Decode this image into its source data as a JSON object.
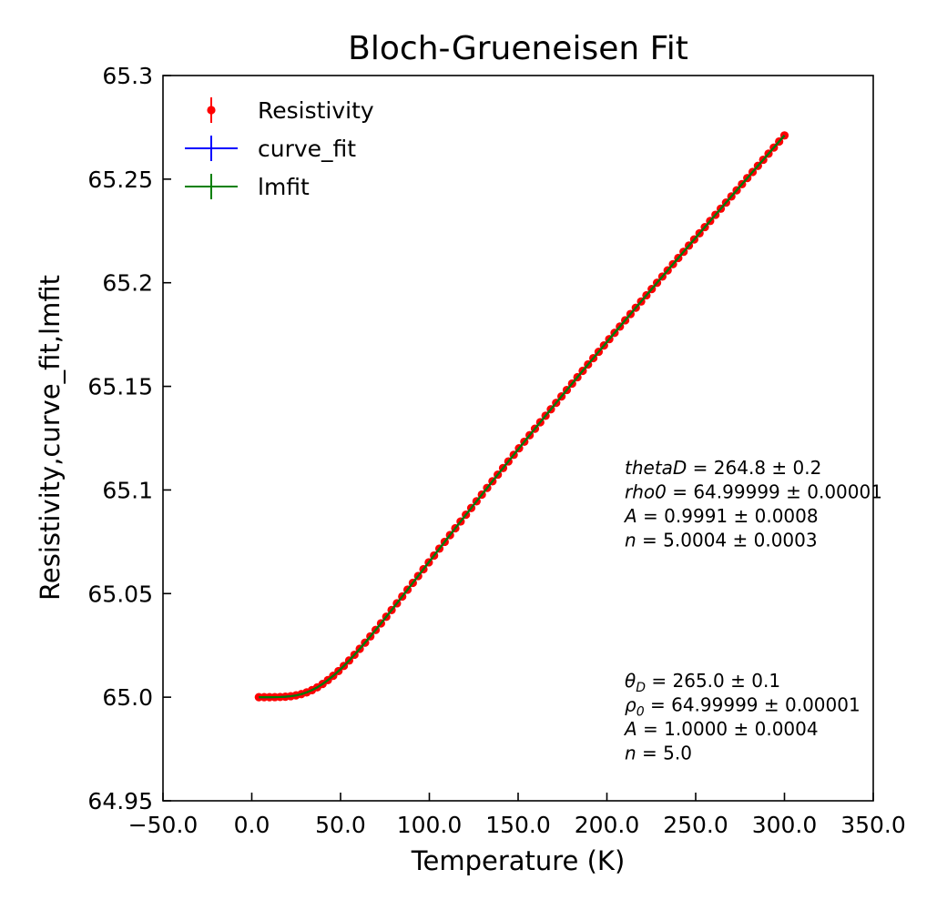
{
  "chart_data": {
    "type": "scatter",
    "title": "Bloch-Grueneisen Fit",
    "xlabel": "Temperature (K)",
    "ylabel": "Resistivity,curve_fit,lmfit",
    "xlim": [
      -50,
      350
    ],
    "ylim": [
      64.95,
      65.3
    ],
    "x_ticks": [
      -50,
      0,
      50,
      100,
      150,
      200,
      250,
      300,
      350
    ],
    "x_tick_labels": [
      "−50.0",
      "0.0",
      "50.0",
      "100.0",
      "150.0",
      "200.0",
      "250.0",
      "300.0",
      "350.0"
    ],
    "y_ticks": [
      64.95,
      65.0,
      65.05,
      65.1,
      65.15,
      65.2,
      65.25,
      65.3
    ],
    "y_tick_labels": [
      "64.95",
      "65.0",
      "65.05",
      "65.1",
      "65.15",
      "65.2",
      "65.25",
      "65.3"
    ],
    "grid": false,
    "legend_position": "top-left",
    "legend": [
      {
        "label": "Resistivity",
        "color": "#ff0000",
        "marker": "errorbar-point"
      },
      {
        "label": "curve_fit",
        "color": "#0000ff",
        "marker": "errorbar-line"
      },
      {
        "label": "lmfit",
        "color": "#008000",
        "marker": "errorbar-line"
      }
    ],
    "model": {
      "thetaD": 265.0,
      "rho0": 65.0,
      "A": 1.0,
      "n": 5
    },
    "x_range": [
      4,
      300
    ],
    "n_points": 100,
    "series": [
      {
        "name": "Resistivity",
        "color": "#ff0000",
        "style": "points"
      },
      {
        "name": "curve_fit",
        "color": "#0000ff",
        "style": "line"
      },
      {
        "name": "lmfit",
        "color": "#008000",
        "style": "line"
      }
    ],
    "annotations": [
      {
        "position": "right-middle",
        "lines": [
          {
            "var": "thetaD",
            "eq": " = 264.8 ± 0.2"
          },
          {
            "var": "rho0",
            "eq": " = 64.99999 ± 0.00001"
          },
          {
            "var": "A",
            "eq": " = 0.9991 ± 0.0008"
          },
          {
            "var": "n",
            "eq": " = 5.0004 ± 0.0003"
          }
        ]
      },
      {
        "position": "right-bottom",
        "lines": [
          {
            "var": "θ",
            "sub": "D",
            "eq": " = 265.0 ± 0.1"
          },
          {
            "var": "ρ",
            "sub": "0",
            "eq": " = 64.99999 ± 0.00001"
          },
          {
            "var": "A",
            "eq": " = 1.0000 ± 0.0004"
          },
          {
            "var": "n",
            "eq": " = 5.0"
          }
        ]
      }
    ]
  }
}
